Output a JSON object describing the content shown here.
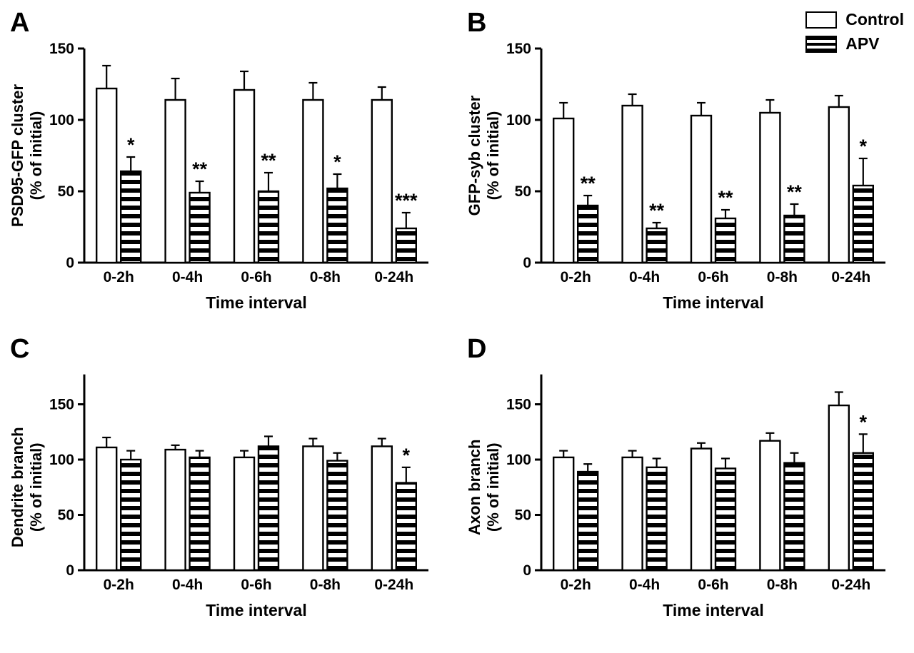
{
  "figure": {
    "background": "#ffffff"
  },
  "legend": {
    "items": [
      {
        "label": "Control",
        "style": "open"
      },
      {
        "label": "APV",
        "style": "hatched"
      }
    ]
  },
  "colors": {
    "axis": "#000000",
    "bar_fill_open": "#ffffff",
    "bar_stroke": "#000000",
    "hatch_dark": "#000000",
    "hatch_light": "#ffffff"
  },
  "chart_data": [
    {
      "panel": "A",
      "type": "bar",
      "categories": [
        "0-2h",
        "0-4h",
        "0-6h",
        "0-8h",
        "0-24h"
      ],
      "xlabel": "Time interval",
      "ylabel_lines": [
        "PSD95-GFP cluster",
        "(% of initial)"
      ],
      "yticks": [
        0,
        50,
        100,
        150
      ],
      "ylim": [
        0,
        150
      ],
      "legend_position": "none",
      "grid": false,
      "series": [
        {
          "name": "Control",
          "style": "open",
          "values": [
            122,
            114,
            121,
            114,
            114
          ],
          "errors": [
            16,
            15,
            13,
            12,
            9
          ],
          "sig": [
            "",
            "",
            "",
            "",
            ""
          ]
        },
        {
          "name": "APV",
          "style": "hatched",
          "values": [
            64,
            49,
            50,
            52,
            24
          ],
          "errors": [
            10,
            8,
            13,
            10,
            11
          ],
          "sig": [
            "*",
            "**",
            "**",
            "*",
            "***"
          ]
        }
      ]
    },
    {
      "panel": "B",
      "type": "bar",
      "categories": [
        "0-2h",
        "0-4h",
        "0-6h",
        "0-8h",
        "0-24h"
      ],
      "xlabel": "Time interval",
      "ylabel_lines": [
        "GFP-syb cluster",
        "(% of initial)"
      ],
      "yticks": [
        0,
        50,
        100,
        150
      ],
      "ylim": [
        0,
        150
      ],
      "legend_position": "top-right",
      "grid": false,
      "series": [
        {
          "name": "Control",
          "style": "open",
          "values": [
            101,
            110,
            103,
            105,
            109
          ],
          "errors": [
            11,
            8,
            9,
            9,
            8
          ],
          "sig": [
            "",
            "",
            "",
            "",
            ""
          ]
        },
        {
          "name": "APV",
          "style": "hatched",
          "values": [
            40,
            24,
            31,
            33,
            54
          ],
          "errors": [
            7,
            4,
            6,
            8,
            19
          ],
          "sig": [
            "**",
            "**",
            "**",
            "**",
            "*"
          ]
        }
      ]
    },
    {
      "panel": "C",
      "type": "bar",
      "categories": [
        "0-2h",
        "0-4h",
        "0-6h",
        "0-8h",
        "0-24h"
      ],
      "xlabel": "Time interval",
      "ylabel_lines": [
        "Dendrite branch",
        "(% of initial)"
      ],
      "yticks": [
        0,
        50,
        100,
        150
      ],
      "ylim": [
        0,
        150
      ],
      "legend_position": "none",
      "grid": false,
      "series": [
        {
          "name": "Control",
          "style": "open",
          "values": [
            111,
            109,
            102,
            112,
            112
          ],
          "errors": [
            9,
            4,
            6,
            7,
            7
          ],
          "sig": [
            "",
            "",
            "",
            "",
            ""
          ]
        },
        {
          "name": "APV",
          "style": "hatched",
          "values": [
            100,
            102,
            112,
            99,
            79
          ],
          "errors": [
            8,
            6,
            9,
            7,
            14
          ],
          "sig": [
            "",
            "",
            "",
            "",
            "*"
          ]
        }
      ]
    },
    {
      "panel": "D",
      "type": "bar",
      "categories": [
        "0-2h",
        "0-4h",
        "0-6h",
        "0-8h",
        "0-24h"
      ],
      "xlabel": "Time interval",
      "ylabel_lines": [
        "Axon branch",
        "(% of initial)"
      ],
      "yticks": [
        0,
        50,
        100,
        150
      ],
      "ylim": [
        0,
        150
      ],
      "legend_position": "none",
      "grid": false,
      "series": [
        {
          "name": "Control",
          "style": "open",
          "values": [
            102,
            102,
            110,
            117,
            149
          ],
          "errors": [
            6,
            6,
            5,
            7,
            12
          ],
          "sig": [
            "",
            "",
            "",
            "",
            ""
          ]
        },
        {
          "name": "APV",
          "style": "hatched",
          "values": [
            89,
            93,
            92,
            97,
            106
          ],
          "errors": [
            7,
            8,
            9,
            9,
            17
          ],
          "sig": [
            "",
            "",
            "",
            "",
            "*"
          ]
        }
      ]
    }
  ]
}
